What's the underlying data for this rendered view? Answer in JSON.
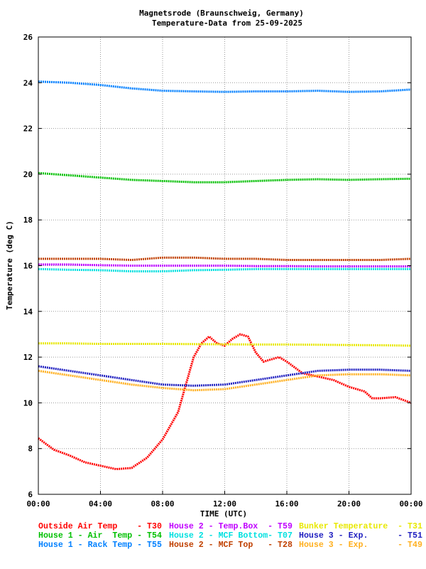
{
  "chart_data": {
    "type": "line",
    "title": "Magnetsrode (Braunschweig, Germany)",
    "subtitle": "Temperature-Data from 25-09-2025",
    "xlabel": "TIME (UTC)",
    "ylabel": "Temperature (deg C)",
    "xlim": [
      0,
      24
    ],
    "ylim": [
      6,
      26
    ],
    "grid": true,
    "x_ticks": [
      "00:00",
      "04:00",
      "08:00",
      "12:00",
      "16:00",
      "20:00",
      "00:00"
    ],
    "y_ticks": [
      "6",
      "8",
      "10",
      "12",
      "14",
      "16",
      "18",
      "20",
      "22",
      "24",
      "26"
    ],
    "legend_position": "bottom",
    "series": [
      {
        "name": "Outside Air Temp    - T30",
        "color": "#ff0000",
        "x": [
          0,
          1,
          2,
          3,
          4,
          5,
          6,
          7,
          8,
          9,
          9.5,
          10,
          10.5,
          11,
          11.5,
          12,
          12.5,
          13,
          13.5,
          14,
          14.5,
          15,
          15.5,
          16,
          17,
          18,
          19,
          20,
          21,
          21.5,
          22,
          23,
          24
        ],
        "values": [
          8.45,
          7.95,
          7.7,
          7.4,
          7.25,
          7.1,
          7.15,
          7.6,
          8.4,
          9.6,
          10.8,
          12.0,
          12.6,
          12.9,
          12.6,
          12.5,
          12.8,
          13.0,
          12.9,
          12.2,
          11.8,
          11.9,
          12.0,
          11.8,
          11.3,
          11.15,
          11.0,
          10.7,
          10.5,
          10.2,
          10.2,
          10.25,
          10.0
        ]
      },
      {
        "name": "House 1 - Air  Temp - T54",
        "color": "#00c000",
        "x": [
          0,
          2,
          4,
          6,
          8,
          10,
          12,
          14,
          16,
          18,
          20,
          22,
          24
        ],
        "values": [
          20.05,
          19.95,
          19.85,
          19.75,
          19.7,
          19.65,
          19.65,
          19.7,
          19.75,
          19.78,
          19.75,
          19.78,
          19.8
        ]
      },
      {
        "name": "House 1 - Rack Temp - T55",
        "color": "#0080ff",
        "x": [
          0,
          2,
          4,
          6,
          8,
          10,
          12,
          14,
          16,
          18,
          20,
          22,
          24
        ],
        "values": [
          24.05,
          24.0,
          23.9,
          23.75,
          23.65,
          23.62,
          23.6,
          23.62,
          23.62,
          23.65,
          23.6,
          23.62,
          23.7
        ]
      },
      {
        "name": "House 2 - Temp.Box  - T59",
        "color": "#c000ff",
        "x": [
          0,
          2,
          4,
          6,
          8,
          10,
          12,
          14,
          16,
          18,
          20,
          22,
          24
        ],
        "values": [
          16.05,
          16.05,
          16.02,
          16.0,
          16.0,
          16.0,
          16.0,
          15.98,
          15.98,
          15.97,
          15.97,
          15.97,
          15.97
        ]
      },
      {
        "name": "House 2 - MCF Bottom- T07",
        "color": "#00e0e0",
        "x": [
          0,
          2,
          4,
          6,
          8,
          10,
          12,
          14,
          16,
          18,
          20,
          22,
          24
        ],
        "values": [
          15.85,
          15.82,
          15.8,
          15.75,
          15.75,
          15.8,
          15.82,
          15.85,
          15.85,
          15.85,
          15.85,
          15.85,
          15.85
        ]
      },
      {
        "name": "House 2 - MCF Top   - T28",
        "color": "#c04000",
        "x": [
          0,
          2,
          4,
          6,
          8,
          10,
          12,
          14,
          16,
          18,
          20,
          22,
          24
        ],
        "values": [
          16.3,
          16.3,
          16.3,
          16.25,
          16.35,
          16.35,
          16.3,
          16.3,
          16.25,
          16.25,
          16.25,
          16.25,
          16.3
        ]
      },
      {
        "name": "Bunker Temperature  - T31",
        "color": "#e8e800",
        "x": [
          0,
          2,
          4,
          6,
          8,
          10,
          12,
          14,
          16,
          18,
          20,
          22,
          24
        ],
        "values": [
          12.6,
          12.6,
          12.58,
          12.58,
          12.58,
          12.57,
          12.56,
          12.55,
          12.55,
          12.54,
          12.53,
          12.52,
          12.5
        ]
      },
      {
        "name": "House 3 - Exp.      - T51",
        "color": "#2020c0",
        "x": [
          0,
          2,
          4,
          6,
          8,
          10,
          12,
          14,
          16,
          18,
          20,
          22,
          24
        ],
        "values": [
          11.6,
          11.4,
          11.2,
          11.0,
          10.8,
          10.75,
          10.8,
          11.0,
          11.2,
          11.4,
          11.45,
          11.45,
          11.4
        ]
      },
      {
        "name": "House 3 - Exp.      - T49",
        "color": "#ffb020",
        "x": [
          0,
          2,
          4,
          6,
          8,
          10,
          12,
          14,
          16,
          18,
          20,
          22,
          24
        ],
        "values": [
          11.4,
          11.2,
          11.0,
          10.8,
          10.65,
          10.55,
          10.6,
          10.8,
          11.0,
          11.2,
          11.25,
          11.25,
          11.2
        ]
      }
    ]
  }
}
